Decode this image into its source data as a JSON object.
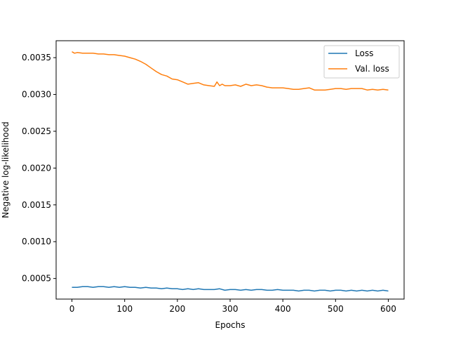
{
  "chart_data": {
    "type": "line",
    "title": "",
    "xlabel": "Epochs",
    "ylabel": "Negative log-likelihood",
    "xlim": [
      -30,
      630
    ],
    "ylim": [
      0.00022,
      0.00373
    ],
    "xticks": [
      0,
      100,
      200,
      300,
      400,
      500,
      600
    ],
    "xtick_labels": [
      "0",
      "100",
      "200",
      "300",
      "400",
      "500",
      "600"
    ],
    "yticks": [
      0.0005,
      0.001,
      0.0015,
      0.002,
      0.0025,
      0.003,
      0.0035
    ],
    "ytick_labels": [
      "0.0005",
      "0.0010",
      "0.0015",
      "0.0020",
      "0.0025",
      "0.0030",
      "0.0035"
    ],
    "grid": false,
    "legend": "top-right",
    "series": [
      {
        "name": "Loss",
        "color": "#1f77b4",
        "x": [
          0,
          10,
          20,
          30,
          40,
          50,
          60,
          70,
          80,
          90,
          100,
          110,
          120,
          130,
          140,
          150,
          160,
          170,
          180,
          190,
          200,
          210,
          220,
          230,
          240,
          250,
          260,
          270,
          280,
          290,
          300,
          310,
          320,
          330,
          340,
          350,
          360,
          370,
          380,
          390,
          400,
          410,
          420,
          430,
          440,
          450,
          460,
          470,
          480,
          490,
          500,
          510,
          520,
          530,
          540,
          550,
          560,
          570,
          580,
          590,
          600
        ],
        "values": [
          0.00038,
          0.00038,
          0.00039,
          0.00039,
          0.00038,
          0.00039,
          0.00039,
          0.00038,
          0.00039,
          0.00038,
          0.00039,
          0.00038,
          0.00038,
          0.00037,
          0.00038,
          0.00037,
          0.00037,
          0.00036,
          0.00037,
          0.00036,
          0.00036,
          0.00035,
          0.00036,
          0.00035,
          0.00036,
          0.00035,
          0.00035,
          0.00035,
          0.00036,
          0.00034,
          0.00035,
          0.00035,
          0.00034,
          0.00035,
          0.00034,
          0.00035,
          0.00035,
          0.00034,
          0.00034,
          0.00035,
          0.00034,
          0.00034,
          0.00034,
          0.00033,
          0.00034,
          0.00034,
          0.00033,
          0.00034,
          0.00034,
          0.00033,
          0.00034,
          0.00034,
          0.00033,
          0.00034,
          0.00033,
          0.00034,
          0.00033,
          0.00034,
          0.00033,
          0.00034,
          0.00033
        ]
      },
      {
        "name": "Val. loss",
        "color": "#ff7f0e",
        "x": [
          0,
          5,
          10,
          20,
          30,
          40,
          50,
          60,
          70,
          80,
          90,
          100,
          110,
          120,
          130,
          140,
          150,
          160,
          170,
          180,
          190,
          200,
          210,
          220,
          230,
          240,
          250,
          260,
          270,
          275,
          280,
          285,
          290,
          300,
          310,
          320,
          330,
          340,
          350,
          360,
          370,
          380,
          390,
          400,
          410,
          420,
          430,
          440,
          450,
          460,
          470,
          480,
          490,
          500,
          510,
          520,
          530,
          540,
          550,
          560,
          570,
          580,
          590,
          600
        ],
        "values": [
          0.00358,
          0.00356,
          0.00357,
          0.00356,
          0.00356,
          0.00356,
          0.00355,
          0.00355,
          0.00354,
          0.00354,
          0.00353,
          0.00352,
          0.0035,
          0.00348,
          0.00345,
          0.00341,
          0.00336,
          0.00331,
          0.00327,
          0.00325,
          0.00321,
          0.0032,
          0.00317,
          0.00314,
          0.00315,
          0.00316,
          0.00313,
          0.00312,
          0.00311,
          0.00317,
          0.00312,
          0.00314,
          0.00312,
          0.00312,
          0.00313,
          0.00311,
          0.00314,
          0.00312,
          0.00313,
          0.00312,
          0.0031,
          0.00309,
          0.00309,
          0.00309,
          0.00308,
          0.00307,
          0.00307,
          0.00308,
          0.00309,
          0.00306,
          0.00306,
          0.00306,
          0.00307,
          0.00308,
          0.00308,
          0.00307,
          0.00308,
          0.00308,
          0.00308,
          0.00306,
          0.00307,
          0.00306,
          0.00307,
          0.00306
        ]
      }
    ]
  }
}
